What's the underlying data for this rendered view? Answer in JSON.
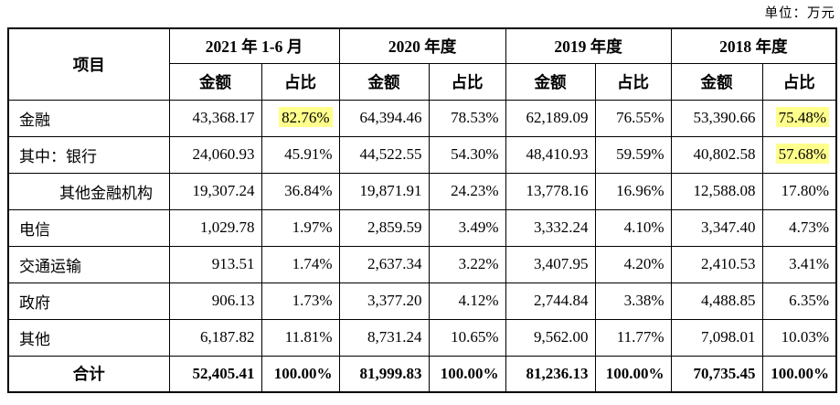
{
  "unit_label": "单位：万元",
  "colors": {
    "highlight": "#ffff8c",
    "border": "#000000",
    "text": "#000000"
  },
  "table": {
    "item_header": "项目",
    "period_headers": [
      "2021 年 1-6 月",
      "2020 年度",
      "2019 年度",
      "2018 年度"
    ],
    "sub_headers": {
      "amount": "金额",
      "ratio": "占比"
    },
    "rows": [
      {
        "label": "金融",
        "indent": false,
        "values": [
          "43,368.17",
          "82.76%",
          "64,394.46",
          "78.53%",
          "62,189.09",
          "76.55%",
          "53,390.66",
          "75.48%"
        ],
        "highlights": [
          1,
          7
        ]
      },
      {
        "label": "其中：银行",
        "indent": false,
        "values": [
          "24,060.93",
          "45.91%",
          "44,522.55",
          "54.30%",
          "48,410.93",
          "59.59%",
          "40,802.58",
          "57.68%"
        ],
        "highlights": [
          7
        ]
      },
      {
        "label": "其他金融机构",
        "indent": true,
        "values": [
          "19,307.24",
          "36.84%",
          "19,871.91",
          "24.23%",
          "13,778.16",
          "16.96%",
          "12,588.08",
          "17.80%"
        ],
        "highlights": []
      },
      {
        "label": "电信",
        "indent": false,
        "values": [
          "1,029.78",
          "1.97%",
          "2,859.59",
          "3.49%",
          "3,332.24",
          "4.10%",
          "3,347.40",
          "4.73%"
        ],
        "highlights": []
      },
      {
        "label": "交通运输",
        "indent": false,
        "values": [
          "913.51",
          "1.74%",
          "2,637.34",
          "3.22%",
          "3,407.95",
          "4.20%",
          "2,410.53",
          "3.41%"
        ],
        "highlights": []
      },
      {
        "label": "政府",
        "indent": false,
        "values": [
          "906.13",
          "1.73%",
          "3,377.20",
          "4.12%",
          "2,744.84",
          "3.38%",
          "4,488.85",
          "6.35%"
        ],
        "highlights": []
      },
      {
        "label": "其他",
        "indent": false,
        "values": [
          "6,187.82",
          "11.81%",
          "8,731.24",
          "10.65%",
          "9,562.00",
          "11.77%",
          "7,098.01",
          "10.03%"
        ],
        "highlights": []
      }
    ],
    "total_row": {
      "label": "合计",
      "values": [
        "52,405.41",
        "100.00%",
        "81,999.83",
        "100.00%",
        "81,236.13",
        "100.00%",
        "70,735.45",
        "100.00%"
      ],
      "highlights": []
    }
  }
}
